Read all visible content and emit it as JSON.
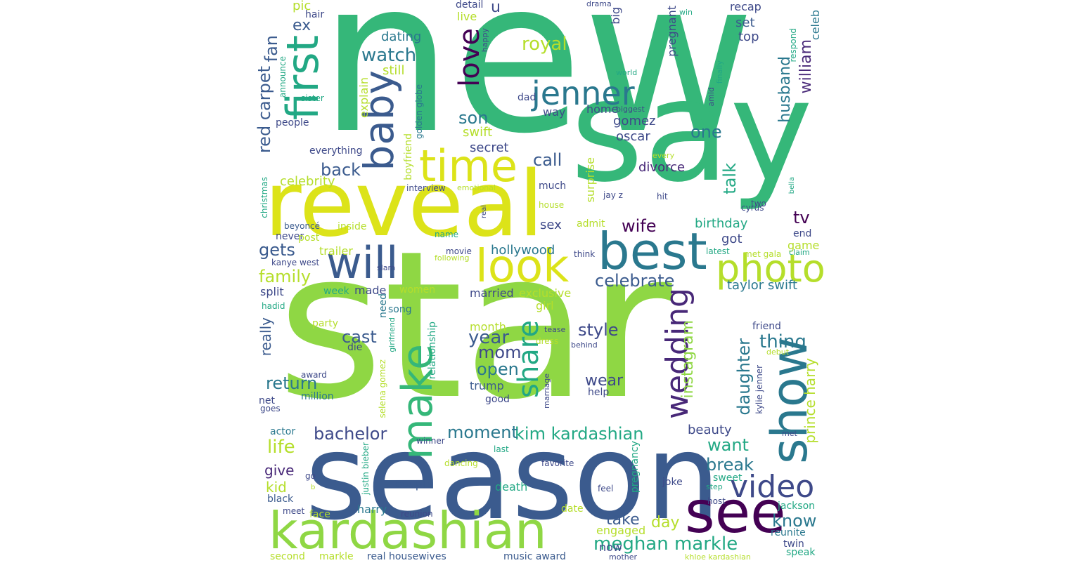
{
  "palette": {
    "c1": "#440154",
    "c2": "#482878",
    "c3": "#3e4989",
    "c4": "#31688e",
    "c5": "#26828e",
    "c6": "#1f9e89",
    "c7": "#35b779",
    "c8": "#6ece58",
    "c9": "#b5de2b",
    "c10": "#dce319"
  },
  "words": [
    {
      "text": "new",
      "color": "#35b779"
    },
    {
      "text": "star",
      "color": "#8fd744"
    },
    {
      "text": "say",
      "color": "#35b779"
    },
    {
      "text": "reveal",
      "color": "#dce319"
    },
    {
      "text": "season",
      "color": "#3b5b8e"
    },
    {
      "text": "show",
      "color": "#2a788e"
    },
    {
      "text": "see",
      "color": "#440154"
    },
    {
      "text": "kardashian",
      "color": "#8fd744"
    },
    {
      "text": "look",
      "color": "#dce319"
    },
    {
      "text": "best",
      "color": "#2a788e"
    },
    {
      "text": "will",
      "color": "#3b5b8e"
    },
    {
      "text": "make",
      "color": "#35b779"
    },
    {
      "text": "time",
      "color": "#dce319"
    },
    {
      "text": "first",
      "color": "#22a884"
    },
    {
      "text": "baby",
      "color": "#3b5b8e"
    },
    {
      "text": "photo",
      "color": "#b5de2b"
    },
    {
      "text": "video",
      "color": "#3e4989"
    },
    {
      "text": "jenner",
      "color": "#2a788e"
    },
    {
      "text": "wedding",
      "color": "#482878"
    },
    {
      "text": "share",
      "color": "#22a884"
    },
    {
      "text": "love",
      "color": "#440154"
    },
    {
      "text": "meghan markle",
      "color": "#22a884"
    },
    {
      "text": "kim kardashian",
      "color": "#22a884"
    },
    {
      "text": "bachelor",
      "color": "#3e4989"
    },
    {
      "text": "celebrate",
      "color": "#3b5b8e"
    },
    {
      "text": "royal",
      "color": "#b5de2b"
    },
    {
      "text": "watch",
      "color": "#2a788e"
    },
    {
      "text": "return",
      "color": "#2a788e"
    },
    {
      "text": "family",
      "color": "#b5de2b"
    },
    {
      "text": "year",
      "color": "#3b5b8e"
    },
    {
      "text": "cast",
      "color": "#3b5b8e"
    },
    {
      "text": "moment",
      "color": "#2a788e"
    },
    {
      "text": "life",
      "color": "#b5de2b"
    },
    {
      "text": "style",
      "color": "#3e4989"
    },
    {
      "text": "thing",
      "color": "#2a788e"
    },
    {
      "text": "daughter",
      "color": "#2a788e"
    },
    {
      "text": "instagram",
      "color": "#8fd744"
    },
    {
      "text": "talk",
      "color": "#22a884"
    },
    {
      "text": "husband",
      "color": "#2a788e"
    },
    {
      "text": "william",
      "color": "#482878"
    },
    {
      "text": "red carpet",
      "color": "#3b5b8e"
    },
    {
      "text": "fan",
      "color": "#3b5b8e"
    },
    {
      "text": "back",
      "color": "#3b5b8e"
    },
    {
      "text": "call",
      "color": "#3b5b8e"
    },
    {
      "text": "son",
      "color": "#2a788e"
    },
    {
      "text": "one",
      "color": "#2a788e"
    },
    {
      "text": "wife",
      "color": "#440154"
    },
    {
      "text": "tv",
      "color": "#440154"
    },
    {
      "text": "gets",
      "color": "#3b5b8e"
    },
    {
      "text": "open",
      "color": "#2a788e"
    },
    {
      "text": "mom",
      "color": "#3e4989"
    },
    {
      "text": "wear",
      "color": "#3e4989"
    },
    {
      "text": "want",
      "color": "#22a884"
    },
    {
      "text": "break",
      "color": "#2a788e"
    },
    {
      "text": "take",
      "color": "#3b5b8e"
    },
    {
      "text": "day",
      "color": "#b5de2b"
    },
    {
      "text": "know",
      "color": "#2a788e"
    },
    {
      "text": "prince harry",
      "color": "#b5de2b"
    },
    {
      "text": "taylor swift",
      "color": "#2a788e"
    },
    {
      "text": "really",
      "color": "#3b5b8e"
    },
    {
      "text": "give",
      "color": "#482878"
    },
    {
      "text": "kid",
      "color": "#b5de2b"
    },
    {
      "text": "ex",
      "color": "#3b5b8e"
    },
    {
      "text": "pic",
      "color": "#b5de2b"
    },
    {
      "text": "u",
      "color": "#3e4989"
    },
    {
      "text": "hollywood",
      "color": "#2a788e"
    },
    {
      "text": "birthday",
      "color": "#22a884"
    },
    {
      "text": "divorce",
      "color": "#482878"
    },
    {
      "text": "gomez",
      "color": "#3e4989"
    },
    {
      "text": "oscar",
      "color": "#3e4989"
    },
    {
      "text": "secret",
      "color": "#3e4989"
    },
    {
      "text": "swift",
      "color": "#b5de2b"
    },
    {
      "text": "dating",
      "color": "#2a788e"
    },
    {
      "text": "still",
      "color": "#b5de2b"
    },
    {
      "text": "sex",
      "color": "#3e4989"
    },
    {
      "text": "celebrity",
      "color": "#b5de2b"
    },
    {
      "text": "beauty",
      "color": "#3e4989"
    },
    {
      "text": "got",
      "color": "#3e4989"
    },
    {
      "text": "game",
      "color": "#b5de2b"
    },
    {
      "text": "set",
      "color": "#3b5b8e"
    },
    {
      "text": "top",
      "color": "#3e4989"
    },
    {
      "text": "recap",
      "color": "#3e4989"
    },
    {
      "text": "celeb",
      "color": "#2a788e"
    },
    {
      "text": "pregnant",
      "color": "#3e4989"
    },
    {
      "text": "big",
      "color": "#3e4989"
    },
    {
      "text": "live",
      "color": "#b5de2b"
    },
    {
      "text": "detail",
      "color": "#3e4989"
    },
    {
      "text": "hair",
      "color": "#3e4989"
    },
    {
      "text": "everything",
      "color": "#3e4989"
    },
    {
      "text": "people",
      "color": "#3e4989"
    },
    {
      "text": "explain",
      "color": "#b5de2b"
    },
    {
      "text": "way",
      "color": "#3e4989"
    },
    {
      "text": "home",
      "color": "#3e4989"
    },
    {
      "text": "dad",
      "color": "#3e4989"
    },
    {
      "text": "much",
      "color": "#3e4989"
    },
    {
      "text": "surprise",
      "color": "#b5de2b"
    },
    {
      "text": "admit",
      "color": "#b5de2b"
    },
    {
      "text": "made",
      "color": "#3e4989"
    },
    {
      "text": "split",
      "color": "#3e4989"
    },
    {
      "text": "trailer",
      "color": "#b5de2b"
    },
    {
      "text": "inside",
      "color": "#b5de2b"
    },
    {
      "text": "never",
      "color": "#3e4989"
    },
    {
      "text": "post",
      "color": "#b5de2b"
    },
    {
      "text": "week",
      "color": "#22a884"
    },
    {
      "text": "women",
      "color": "#b5de2b"
    },
    {
      "text": "married",
      "color": "#3e4989"
    },
    {
      "text": "exclusive",
      "color": "#b5de2b"
    },
    {
      "text": "girl",
      "color": "#b5de2b"
    },
    {
      "text": "month",
      "color": "#b5de2b"
    },
    {
      "text": "trump",
      "color": "#3b5b8e"
    },
    {
      "text": "help",
      "color": "#3e4989"
    },
    {
      "text": "good",
      "color": "#3e4989"
    },
    {
      "text": "million",
      "color": "#2a788e"
    },
    {
      "text": "song",
      "color": "#2a788e"
    },
    {
      "text": "party",
      "color": "#b5de2b"
    },
    {
      "text": "die",
      "color": "#3e4989"
    },
    {
      "text": "need",
      "color": "#2a788e"
    },
    {
      "text": "friend",
      "color": "#3e4989"
    },
    {
      "text": "end",
      "color": "#3e4989"
    },
    {
      "text": "couple",
      "color": "#3b5b8e"
    },
    {
      "text": "death",
      "color": "#22a884"
    },
    {
      "text": "engaged",
      "color": "#b5de2b"
    },
    {
      "text": "now",
      "color": "#3e4989"
    },
    {
      "text": "harry",
      "color": "#2a788e"
    },
    {
      "text": "face",
      "color": "#b5de2b"
    },
    {
      "text": "black",
      "color": "#3b5b8e"
    },
    {
      "text": "actor",
      "color": "#2a788e"
    },
    {
      "text": "net",
      "color": "#3e4989"
    },
    {
      "text": "jackson",
      "color": "#22a884"
    },
    {
      "text": "reunite",
      "color": "#2a788e"
    },
    {
      "text": "twin",
      "color": "#3e4989"
    },
    {
      "text": "speak",
      "color": "#22a884"
    },
    {
      "text": "second",
      "color": "#b5de2b"
    },
    {
      "text": "markle",
      "color": "#b5de2b"
    },
    {
      "text": "real housewives",
      "color": "#3b5b8e"
    },
    {
      "text": "music award",
      "color": "#3b5b8e"
    },
    {
      "text": "sweet",
      "color": "#22a884"
    },
    {
      "text": "host",
      "color": "#3e4989"
    },
    {
      "text": "joke",
      "color": "#3e4989"
    },
    {
      "text": "date",
      "color": "#b5de2b"
    },
    {
      "text": "christmas",
      "color": "#22a884"
    },
    {
      "text": "kanye west",
      "color": "#3e4989"
    },
    {
      "text": "beyoncé",
      "color": "#3b5b8e"
    },
    {
      "text": "hadid",
      "color": "#22a884"
    },
    {
      "text": "announce",
      "color": "#22a884"
    },
    {
      "text": "sister",
      "color": "#22a884"
    },
    {
      "text": "golden globe",
      "color": "#2a788e"
    },
    {
      "text": "boyfriend",
      "color": "#b5de2b"
    },
    {
      "text": "interview",
      "color": "#3e4989"
    },
    {
      "text": "emotional",
      "color": "#b5de2b"
    },
    {
      "text": "jay z",
      "color": "#3e4989"
    },
    {
      "text": "hit",
      "color": "#3e4989"
    },
    {
      "text": "two",
      "color": "#3e4989"
    },
    {
      "text": "cyrus",
      "color": "#3e4989"
    },
    {
      "text": "bella",
      "color": "#22a884"
    },
    {
      "text": "claim",
      "color": "#22a884"
    },
    {
      "text": "latest",
      "color": "#22a884"
    },
    {
      "text": "met gala",
      "color": "#b5de2b"
    },
    {
      "text": "think",
      "color": "#3e4989"
    },
    {
      "text": "house",
      "color": "#b5de2b"
    },
    {
      "text": "real",
      "color": "#3e4989"
    },
    {
      "text": "name",
      "color": "#22a884"
    },
    {
      "text": "movie",
      "color": "#3e4989"
    },
    {
      "text": "following",
      "color": "#b5de2b"
    },
    {
      "text": "slam",
      "color": "#3e4989"
    },
    {
      "text": "award",
      "color": "#3e4989"
    },
    {
      "text": "goes",
      "color": "#3e4989"
    },
    {
      "text": "selena gomez",
      "color": "#b5de2b"
    },
    {
      "text": "girlfriend",
      "color": "#22a884"
    },
    {
      "text": "relationship",
      "color": "#22a884"
    },
    {
      "text": "justin bieber",
      "color": "#22a884"
    },
    {
      "text": "meet",
      "color": "#3e4989"
    },
    {
      "text": "reunion",
      "color": "#3e4989"
    },
    {
      "text": "winner",
      "color": "#3e4989"
    },
    {
      "text": "last",
      "color": "#22a884"
    },
    {
      "text": "dancing",
      "color": "#b5de2b"
    },
    {
      "text": "favorite",
      "color": "#3e4989"
    },
    {
      "text": "feel",
      "color": "#3e4989"
    },
    {
      "text": "pregnancy",
      "color": "#22a884"
    },
    {
      "text": "step",
      "color": "#22a884"
    },
    {
      "text": "kylie jenner",
      "color": "#3e4989"
    },
    {
      "text": "met",
      "color": "#3e4989"
    },
    {
      "text": "debut",
      "color": "#b5de2b"
    },
    {
      "text": "tease",
      "color": "#3e4989"
    },
    {
      "text": "dress",
      "color": "#b5de2b"
    },
    {
      "text": "behind",
      "color": "#3e4989"
    },
    {
      "text": "marriage",
      "color": "#3e4989"
    },
    {
      "text": "mother",
      "color": "#3e4989"
    },
    {
      "text": "khloe kardashian",
      "color": "#b5de2b"
    },
    {
      "text": "drama",
      "color": "#3e4989"
    },
    {
      "text": "win",
      "color": "#22a884"
    },
    {
      "text": "happy",
      "color": "#3e4989"
    },
    {
      "text": "world",
      "color": "#22a884"
    },
    {
      "text": "amid",
      "color": "#3e4989"
    },
    {
      "text": "finally",
      "color": "#22a884"
    },
    {
      "text": "respond",
      "color": "#22a884"
    },
    {
      "text": "biggest",
      "color": "#3e4989"
    },
    {
      "text": "every",
      "color": "#b5de2b"
    },
    {
      "text": "go",
      "color": "#3e4989"
    },
    {
      "text": "b",
      "color": "#b5de2b"
    }
  ]
}
